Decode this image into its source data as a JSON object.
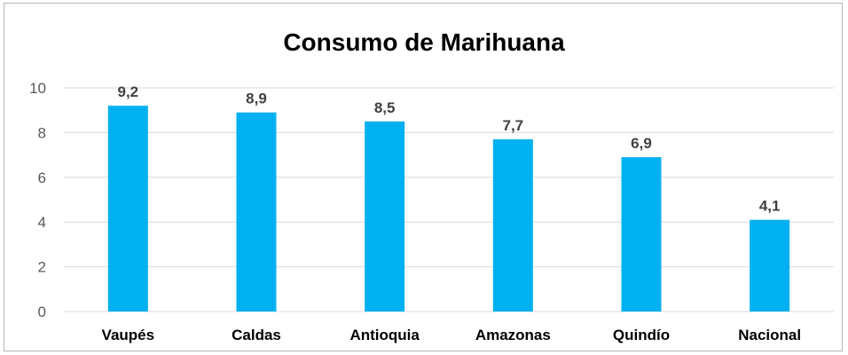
{
  "chart_data": {
    "type": "bar",
    "title": "Consumo de Marihuana",
    "categories": [
      "Vaupés",
      "Caldas",
      "Antioquia",
      "Amazonas",
      "Quindío",
      "Nacional"
    ],
    "values": [
      9.2,
      8.9,
      8.5,
      7.7,
      6.9,
      4.1
    ],
    "data_labels": [
      "9,2",
      "8,9",
      "8,5",
      "7,7",
      "6,9",
      "4,1"
    ],
    "y_ticks": [
      0,
      2,
      4,
      6,
      8,
      10
    ],
    "ylim": [
      0,
      10
    ],
    "grid": true,
    "bar_color": "#00b0f0",
    "grid_color": "#d9d9d9"
  }
}
